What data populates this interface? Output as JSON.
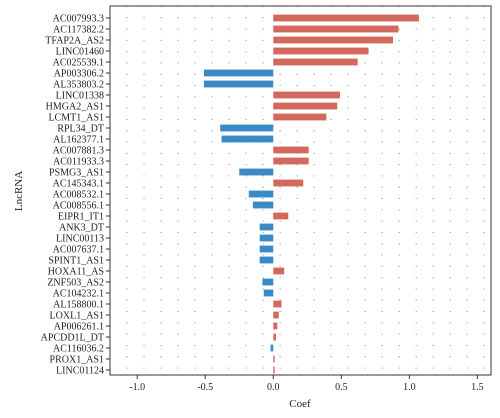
{
  "chart_data": {
    "type": "bar",
    "orientation": "horizontal",
    "title": "",
    "xlabel": "Coef",
    "ylabel": "LncRNA",
    "xlim": [
      -1.2,
      1.6
    ],
    "xticks": [
      "-1.0",
      "-0.5",
      "0.0",
      "0.5",
      "1.0",
      "1.5"
    ],
    "xtick_values": [
      -1.0,
      -0.5,
      0.0,
      0.5,
      1.0,
      1.5
    ],
    "grid": "dotted",
    "colors": {
      "positive": "#d1695c",
      "negative": "#3a8ac8"
    },
    "categories": [
      "AC007993.3",
      "AC117382.2",
      "TFAP2A_AS2",
      "LINC01460",
      "AC025539.1",
      "AP003306.2",
      "AL353803.2",
      "LINC01338",
      "HMGA2_AS1",
      "LCMT1_AS1",
      "RPL34_DT",
      "AL162377.1",
      "AC007881.3",
      "AC011933.3",
      "PSMG3_AS1",
      "AC145343.1",
      "AC008532.1",
      "AC008556.1",
      "EIPR1_IT1",
      "ANK3_DT",
      "LINC00113",
      "AC007637.1",
      "SPINT1_AS1",
      "HOXA11_AS",
      "ZNF503_AS2",
      "AC104232.1",
      "AL158800.1",
      "LOXL1_AS1",
      "AP006261.1",
      "APCDD1L_DT",
      "AC116036.2",
      "PROX1_AS1",
      "LINC01124"
    ],
    "values": [
      1.07,
      0.92,
      0.88,
      0.7,
      0.62,
      -0.51,
      -0.51,
      0.49,
      0.47,
      0.39,
      -0.39,
      -0.38,
      0.26,
      0.26,
      -0.25,
      0.22,
      -0.18,
      -0.15,
      0.11,
      -0.1,
      -0.1,
      -0.1,
      -0.1,
      0.08,
      -0.08,
      -0.07,
      0.06,
      0.04,
      0.03,
      0.02,
      -0.02,
      0.01,
      0.01
    ]
  }
}
